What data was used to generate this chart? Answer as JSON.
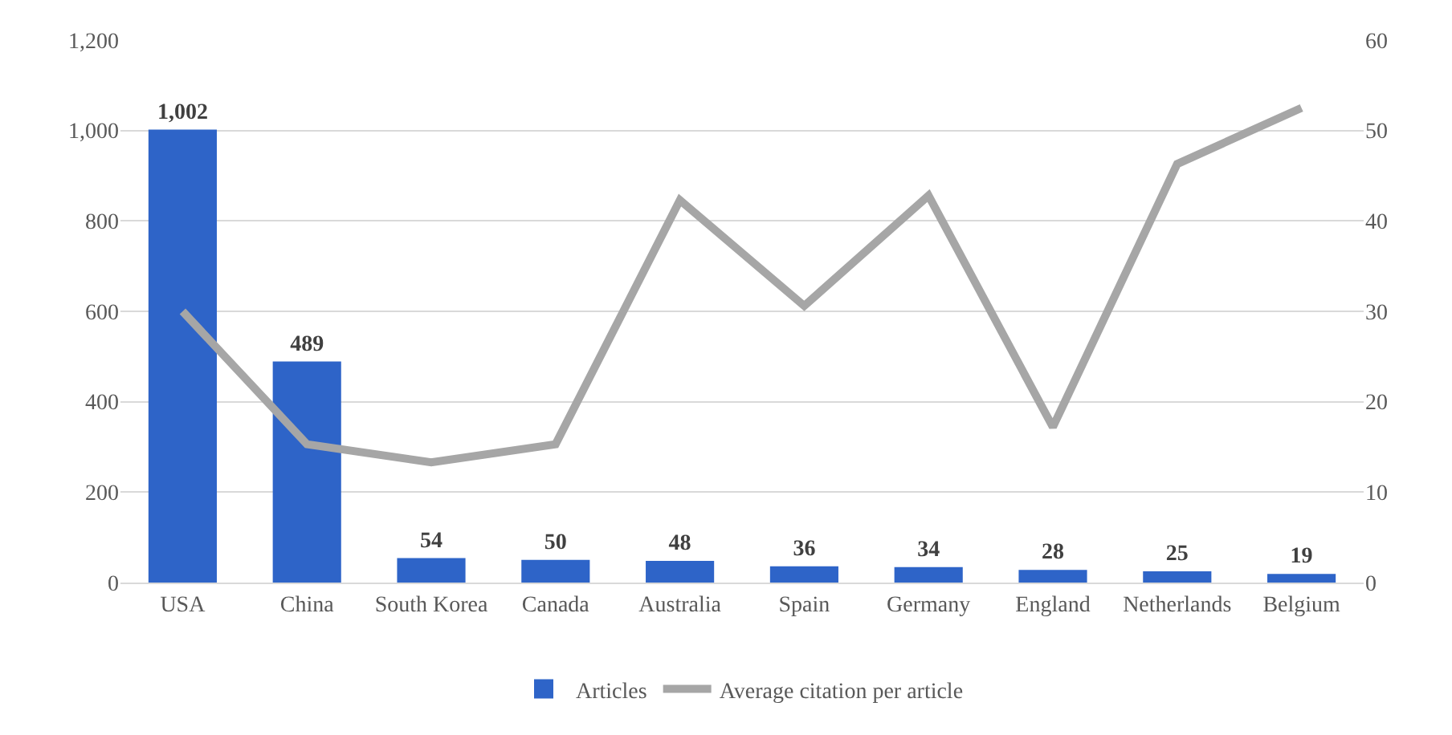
{
  "chart_data": {
    "type": "bar",
    "categories": [
      "USA",
      "China",
      "South Korea",
      "Canada",
      "Australia",
      "Spain",
      "Germany",
      "England",
      "Netherlands",
      "Belgium"
    ],
    "series": [
      {
        "name": "Articles",
        "color": "#2e64c8",
        "values": [
          1002,
          489,
          54,
          50,
          48,
          36,
          34,
          28,
          25,
          19
        ],
        "value_labels": [
          "1,002",
          "489",
          "54",
          "50",
          "48",
          "36",
          "34",
          "28",
          "25",
          "19"
        ]
      },
      {
        "name": "Average citation per article",
        "type": "line",
        "axis": "y2",
        "color": "#a6a6a6",
        "values": [
          30,
          15.3,
          13.3,
          15.3,
          42.3,
          30.6,
          42.8,
          17.2,
          46.3,
          52.5
        ]
      }
    ],
    "ylim": [
      0,
      1200
    ],
    "yticks": [
      0,
      {
        "value": 200,
        "label": "200"
      },
      {
        "value": 400,
        "label": "400"
      },
      {
        "value": 600,
        "label": "600"
      },
      {
        "value": 800,
        "label": "800"
      },
      {
        "value": 1000,
        "label": "1,000"
      },
      {
        "value": 1200,
        "label": "1,200"
      }
    ],
    "y2lim": [
      0,
      60
    ],
    "y2ticks": [
      0,
      10,
      20,
      30,
      40,
      50,
      60
    ],
    "grid": "y",
    "legend": "bottom",
    "marker": "none",
    "line_style": "solid"
  }
}
